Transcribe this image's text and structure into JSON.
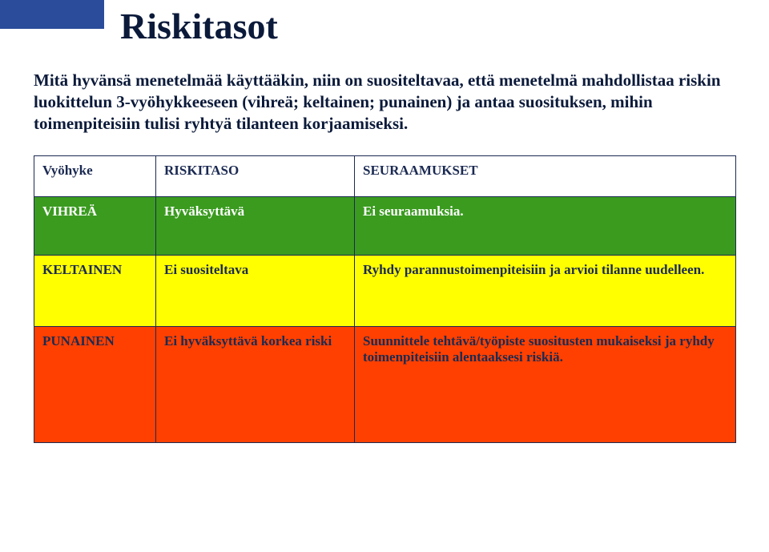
{
  "title": "Riskitasot",
  "intro": "Mitä hyvänsä menetelmää käyttääkin, niin on suositeltavaa, että menetelmä mahdollistaa riskin luokittelun 3-vyöhykkeeseen (vihreä; keltainen; punainen) ja antaa suosituksen, mihin toimenpiteisiin tulisi ryhtyä tilanteen korjaamiseksi.",
  "colors": {
    "corner_block": "#2a4c9b",
    "title_text": "#0b1a3a",
    "intro_text": "#0b1a3a",
    "table_border": "#1b2a52",
    "header_bg": "#ffffff",
    "header_text": "#1b2a52",
    "green_bg": "#3a9b1f",
    "green_text": "#ffffff",
    "yellow_bg": "#ffff00",
    "yellow_text": "#1b2a52",
    "red_bg": "#ff4000",
    "red_text": "#1b2a52"
  },
  "table": {
    "headers": {
      "zone": "Vyöhyke",
      "level": "RISKITASO",
      "consequences": "SEURAAMUKSET"
    },
    "rows": {
      "green": {
        "zone": "VIHREÄ",
        "level": "Hyväksyttävä",
        "consequences": "Ei seuraamuksia."
      },
      "yellow": {
        "zone": "KELTAINEN",
        "level": "Ei suositeltava",
        "consequences": "Ryhdy parannustoimenpiteisiin ja arvioi tilanne uudelleen."
      },
      "red": {
        "zone": "PUNAINEN",
        "level": "Ei hyväksyttävä korkea riski",
        "consequences": "Suunnittele tehtävä/työpiste suositusten mukaiseksi ja ryhdy toimenpiteisiin alentaaksesi riskiä."
      }
    }
  }
}
